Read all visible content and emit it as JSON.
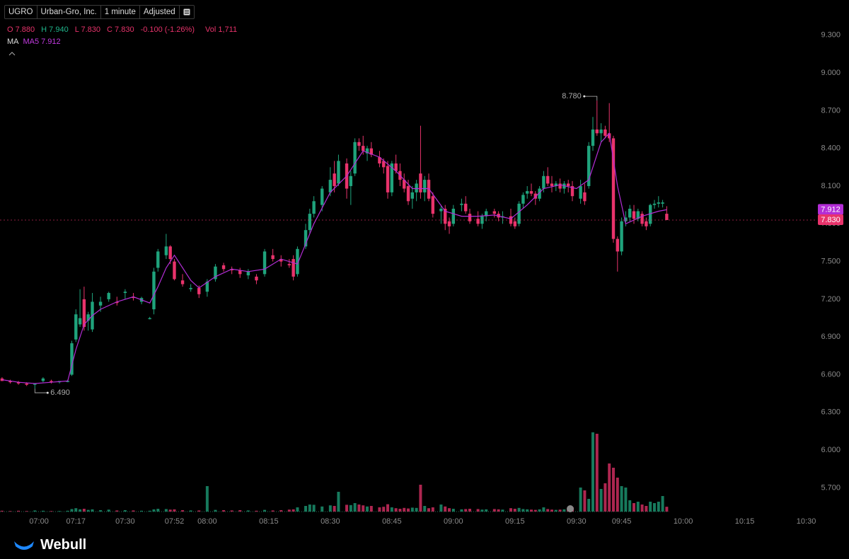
{
  "header": {
    "symbol": "UGRO",
    "name": "Urban-Gro, Inc.",
    "interval": "1 minute",
    "adjustment": "Adjusted"
  },
  "quote": [
    {
      "label": "O",
      "value": "7.880"
    },
    {
      "label": "H",
      "value": "7.940"
    },
    {
      "label": "L",
      "value": "7.830"
    },
    {
      "label": "C",
      "value": "7.830"
    },
    {
      "value": "-0.100 (-1.26%)"
    },
    {
      "label": "Vol",
      "value": "1,711"
    }
  ],
  "indicator": "MA",
  "footer": {
    "brand": "Webull"
  },
  "chart_data": {
    "type": "candlestick",
    "up_color": "#1fa37c",
    "down_color": "#e8336b",
    "xlim": [
      -0.5,
      197.8
    ],
    "xticks": [
      {
        "value": 9,
        "label": "07:00"
      },
      {
        "value": 18,
        "label": "07:17"
      },
      {
        "value": 30,
        "label": "07:30"
      },
      {
        "value": 42,
        "label": "07:52"
      },
      {
        "value": 50,
        "label": "08:00"
      },
      {
        "value": 65,
        "label": "08:15"
      },
      {
        "value": 80,
        "label": "08:30"
      },
      {
        "value": 95,
        "label": "08:45"
      },
      {
        "value": 110,
        "label": "09:00"
      },
      {
        "value": 125,
        "label": "09:15"
      },
      {
        "value": 140,
        "label": "09:30"
      },
      {
        "value": 151,
        "label": "09:45"
      },
      {
        "value": 166,
        "label": "10:00"
      },
      {
        "value": 181,
        "label": "10:15"
      },
      {
        "value": 196,
        "label": "10:30"
      }
    ],
    "ylim": [
      5.5,
      9.58
    ],
    "yticks": [
      {
        "value": 5.7,
        "label": "5.700"
      },
      {
        "value": 6.0,
        "label": "6.000"
      },
      {
        "value": 6.3,
        "label": "6.300"
      },
      {
        "value": 6.6,
        "label": "6.600"
      },
      {
        "value": 6.9,
        "label": "6.900"
      },
      {
        "value": 7.2,
        "label": "7.200"
      },
      {
        "value": 7.5,
        "label": "7.500"
      },
      {
        "value": 7.8,
        "label": "7.800"
      },
      {
        "value": 8.1,
        "label": "8.100"
      },
      {
        "value": 8.4,
        "label": "8.400"
      },
      {
        "value": 8.7,
        "label": "8.700"
      },
      {
        "value": 9.0,
        "label": "9.000"
      },
      {
        "value": 9.3,
        "label": "9.300"
      }
    ],
    "grid": false,
    "x": [
      0,
      2,
      4,
      6,
      8,
      10,
      12,
      14,
      16,
      17,
      18,
      19,
      20,
      21,
      22,
      24,
      26,
      28,
      30,
      32,
      34,
      36,
      37,
      38,
      40,
      41,
      42,
      44,
      46,
      48,
      50,
      52,
      54,
      56,
      58,
      60,
      62,
      64,
      66,
      68,
      70,
      71,
      72,
      74,
      75,
      76,
      78,
      80,
      81,
      82,
      84,
      85,
      86,
      87,
      88,
      89,
      90,
      92,
      93,
      94,
      95,
      96,
      97,
      98,
      99,
      100,
      101,
      102,
      103,
      104,
      105,
      107,
      108,
      109,
      110,
      112,
      113,
      114,
      116,
      117,
      118,
      120,
      121,
      122,
      124,
      125,
      126,
      127,
      128,
      129,
      130,
      131,
      132,
      133,
      134,
      135,
      136,
      137,
      138,
      139,
      141,
      142,
      143,
      144,
      145,
      146,
      147,
      148,
      149,
      150,
      151,
      152,
      153,
      154,
      155,
      156,
      157,
      158,
      159,
      160,
      161,
      162
    ],
    "open": [
      6.57,
      6.55,
      6.54,
      6.53,
      6.52,
      6.55,
      6.55,
      6.54,
      6.55,
      6.6,
      6.88,
      7.0,
      7.2,
      7.03,
      6.96,
      7.15,
      7.2,
      7.18,
      7.25,
      7.22,
      7.18,
      7.05,
      7.12,
      7.45,
      7.55,
      7.62,
      7.5,
      7.35,
      7.28,
      7.29,
      7.26,
      7.36,
      7.47,
      7.44,
      7.43,
      7.39,
      7.38,
      7.4,
      7.55,
      7.52,
      7.48,
      7.52,
      7.4,
      7.62,
      7.75,
      7.88,
      7.95,
      8.05,
      8.2,
      8.12,
      8.28,
      8.1,
      8.2,
      8.45,
      8.42,
      8.36,
      8.4,
      8.33,
      8.3,
      8.26,
      8.05,
      8.28,
      8.22,
      8.15,
      8.1,
      8.0,
      8.05,
      8.2,
      8.05,
      8.15,
      8.02,
      7.9,
      7.92,
      7.82,
      7.8,
      7.95,
      7.96,
      7.88,
      7.84,
      7.8,
      7.86,
      7.9,
      7.88,
      7.85,
      7.86,
      7.82,
      7.8,
      7.96,
      8.04,
      8.06,
      8.04,
      8.0,
      8.08,
      8.18,
      8.12,
      8.1,
      8.12,
      8.08,
      8.12,
      8.1,
      8.0,
      8.05,
      8.1,
      8.42,
      8.55,
      8.52,
      8.55,
      8.52,
      8.48,
      7.68,
      7.58,
      7.82,
      7.85,
      7.9,
      7.84,
      7.88,
      7.82,
      7.8,
      7.95,
      7.96,
      7.96,
      7.88
    ],
    "high": [
      6.58,
      6.56,
      6.55,
      6.54,
      6.53,
      6.58,
      6.56,
      6.55,
      6.56,
      6.87,
      7.12,
      7.28,
      7.3,
      7.1,
      7.25,
      7.22,
      7.26,
      7.22,
      7.28,
      7.25,
      7.22,
      7.06,
      7.45,
      7.6,
      7.72,
      7.63,
      7.52,
      7.4,
      7.32,
      7.31,
      7.36,
      7.48,
      7.49,
      7.46,
      7.45,
      7.44,
      7.4,
      7.6,
      7.6,
      7.55,
      7.52,
      7.55,
      7.62,
      7.8,
      7.92,
      8.02,
      8.1,
      8.25,
      8.3,
      8.35,
      8.32,
      8.22,
      8.48,
      8.48,
      8.5,
      8.42,
      8.45,
      8.38,
      8.32,
      8.3,
      8.3,
      8.35,
      8.28,
      8.2,
      8.15,
      8.1,
      8.15,
      8.58,
      8.18,
      8.2,
      8.05,
      7.95,
      7.95,
      7.85,
      7.95,
      8.0,
      8.02,
      7.92,
      7.9,
      7.88,
      7.92,
      7.92,
      7.9,
      7.9,
      7.92,
      7.85,
      7.98,
      8.05,
      8.1,
      8.12,
      8.06,
      8.1,
      8.22,
      8.25,
      8.18,
      8.14,
      8.16,
      8.14,
      8.15,
      8.14,
      8.15,
      8.12,
      8.45,
      8.65,
      8.78,
      8.6,
      8.58,
      8.76,
      8.5,
      7.7,
      7.85,
      7.9,
      7.95,
      7.95,
      7.92,
      7.9,
      7.85,
      7.96,
      7.99,
      8.02,
      7.99,
      7.94
    ],
    "low": [
      6.55,
      6.53,
      6.52,
      6.51,
      6.49,
      6.54,
      6.53,
      6.53,
      6.54,
      6.59,
      6.86,
      6.98,
      6.95,
      6.95,
      6.94,
      7.1,
      7.18,
      7.15,
      7.2,
      7.19,
      7.16,
      7.04,
      7.08,
      7.42,
      7.52,
      7.48,
      7.35,
      7.3,
      7.26,
      7.21,
      7.22,
      7.34,
      7.42,
      7.4,
      7.37,
      7.36,
      7.32,
      7.38,
      7.5,
      7.46,
      7.45,
      7.35,
      7.38,
      7.6,
      7.72,
      7.85,
      7.9,
      8.02,
      8.05,
      8.1,
      8.0,
      7.95,
      8.18,
      8.38,
      8.35,
      8.3,
      8.33,
      8.25,
      8.2,
      8.0,
      8.02,
      8.2,
      8.1,
      8.05,
      7.95,
      7.92,
      7.98,
      8.0,
      7.98,
      7.98,
      7.85,
      7.8,
      7.75,
      7.72,
      7.78,
      7.9,
      7.88,
      7.8,
      7.78,
      7.76,
      7.82,
      7.85,
      7.82,
      7.8,
      7.78,
      7.76,
      7.78,
      7.92,
      8.0,
      8.02,
      7.95,
      7.98,
      8.05,
      8.1,
      8.05,
      8.06,
      8.05,
      8.04,
      8.05,
      7.98,
      7.96,
      7.95,
      8.08,
      8.38,
      8.5,
      8.45,
      8.48,
      8.45,
      7.65,
      7.42,
      7.55,
      7.78,
      7.82,
      7.8,
      7.82,
      7.78,
      7.75,
      7.78,
      7.92,
      7.93,
      7.93,
      7.83
    ],
    "close": [
      6.55,
      6.54,
      6.53,
      6.52,
      6.53,
      6.57,
      6.54,
      6.55,
      6.55,
      6.85,
      7.08,
      7.05,
      6.98,
      7.08,
      7.18,
      7.18,
      7.25,
      7.17,
      7.26,
      7.21,
      7.21,
      7.05,
      7.42,
      7.58,
      7.62,
      7.52,
      7.36,
      7.32,
      7.29,
      7.24,
      7.34,
      7.46,
      7.44,
      7.43,
      7.4,
      7.42,
      7.35,
      7.58,
      7.52,
      7.5,
      7.47,
      7.38,
      7.6,
      7.75,
      7.88,
      7.98,
      8.08,
      8.15,
      8.1,
      8.3,
      8.08,
      8.18,
      8.45,
      8.42,
      8.38,
      8.4,
      8.35,
      8.28,
      8.25,
      8.05,
      8.28,
      8.22,
      8.15,
      8.08,
      7.98,
      8.05,
      8.12,
      8.05,
      8.15,
      8.0,
      7.88,
      7.92,
      7.8,
      7.78,
      7.92,
      7.96,
      7.9,
      7.82,
      7.8,
      7.86,
      7.9,
      7.88,
      7.85,
      7.86,
      7.8,
      7.78,
      7.96,
      8.03,
      8.06,
      8.04,
      8.0,
      8.08,
      8.18,
      8.12,
      8.1,
      8.12,
      8.08,
      8.12,
      8.1,
      8.02,
      8.1,
      7.98,
      8.42,
      8.55,
      8.52,
      8.55,
      8.5,
      8.48,
      7.68,
      7.58,
      7.82,
      7.85,
      7.92,
      7.84,
      7.9,
      7.8,
      7.78,
      7.95,
      7.96,
      7.97,
      7.97,
      7.83
    ],
    "volume": {
      "y2lim": [
        0,
        30000
      ],
      "values": [
        300,
        200,
        300,
        200,
        400,
        300,
        200,
        200,
        300,
        900,
        1200,
        800,
        1000,
        600,
        800,
        500,
        700,
        400,
        500,
        400,
        300,
        300,
        800,
        1000,
        900,
        700,
        800,
        500,
        400,
        400,
        9000,
        600,
        500,
        400,
        500,
        400,
        300,
        600,
        400,
        500,
        700,
        800,
        1500,
        2000,
        2500,
        2400,
        1800,
        2200,
        2000,
        7000,
        2400,
        2300,
        3000,
        2500,
        2200,
        1800,
        2000,
        1500,
        1700,
        2600,
        1500,
        1200,
        1000,
        1300,
        1100,
        1400,
        1300,
        9500,
        2000,
        1200,
        1500,
        2500,
        1800,
        1200,
        1000,
        800,
        900,
        1000,
        900,
        700,
        800,
        900,
        800,
        700,
        1200,
        1000,
        1300,
        900,
        800,
        700,
        600,
        800,
        1500,
        900,
        700,
        600,
        700,
        800,
        900,
        1500,
        8500,
        7500,
        4500,
        28000,
        27500,
        8000,
        10000,
        17000,
        15500,
        12000,
        9000,
        8500,
        4000,
        3000,
        3500,
        2500,
        2000,
        3500,
        3000,
        3500,
        5500,
        1711
      ]
    },
    "ma": {
      "name": "MA5",
      "color": "#b32dd6",
      "x": [
        0,
        4,
        8,
        12,
        16,
        18,
        20,
        22,
        24,
        28,
        32,
        36,
        38,
        40,
        42,
        44,
        46,
        48,
        52,
        56,
        60,
        64,
        68,
        72,
        76,
        80,
        84,
        88,
        92,
        96,
        100,
        104,
        108,
        112,
        116,
        120,
        124,
        128,
        132,
        136,
        140,
        143,
        146,
        148,
        150,
        152,
        156,
        160,
        162
      ],
      "values": [
        6.56,
        6.54,
        6.53,
        6.54,
        6.55,
        6.8,
        7.0,
        7.07,
        7.12,
        7.18,
        7.22,
        7.17,
        7.3,
        7.45,
        7.55,
        7.45,
        7.35,
        7.29,
        7.38,
        7.44,
        7.42,
        7.44,
        7.52,
        7.48,
        7.8,
        8.05,
        8.18,
        8.38,
        8.33,
        8.22,
        8.08,
        8.08,
        7.9,
        7.86,
        7.86,
        7.87,
        7.84,
        7.95,
        8.08,
        8.11,
        8.08,
        8.15,
        8.45,
        8.52,
        8.1,
        7.8,
        7.86,
        7.9,
        7.912
      ],
      "last": {
        "value": 7.912,
        "label": "7.912"
      }
    },
    "last_price": {
      "value": 7.83,
      "label": "7.830",
      "color": "#e8336b"
    },
    "annotations": [
      {
        "x": 145,
        "y": 8.78,
        "label": "8.780"
      },
      {
        "x": 8,
        "y": 6.49,
        "label": "6.490"
      }
    ]
  }
}
